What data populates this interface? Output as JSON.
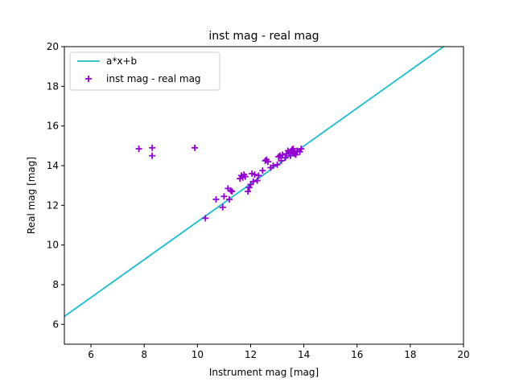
{
  "chart_data": {
    "type": "scatter",
    "title": "inst mag - real mag",
    "xlabel": "Instrument mag [mag]",
    "ylabel": "Real mag [mag]",
    "xlim": [
      5,
      20
    ],
    "ylim": [
      5,
      20
    ],
    "xticks": [
      6,
      8,
      10,
      12,
      14,
      16,
      18,
      20
    ],
    "yticks": [
      6,
      8,
      10,
      12,
      14,
      16,
      18,
      20
    ],
    "grid": false,
    "legend_position": "top-left",
    "series": [
      {
        "name": "a*x+b",
        "kind": "line",
        "color": "#17becf",
        "x": [
          5.0,
          19.25
        ],
        "y": [
          6.4,
          20.0
        ]
      },
      {
        "name": "inst mag - real mag",
        "kind": "scatter",
        "marker": "plus",
        "color": "#9400d3",
        "x": [
          7.8,
          8.3,
          8.3,
          9.9,
          10.3,
          10.7,
          10.95,
          11.0,
          11.15,
          11.2,
          11.3,
          11.25,
          11.6,
          11.65,
          11.7,
          11.75,
          11.8,
          11.9,
          11.95,
          12.0,
          12.05,
          12.1,
          12.15,
          12.25,
          12.3,
          12.45,
          12.55,
          12.6,
          12.65,
          12.75,
          12.85,
          13.0,
          13.05,
          13.1,
          13.15,
          13.2,
          13.3,
          13.35,
          13.4,
          13.45,
          13.5,
          13.55,
          13.6,
          13.6,
          13.65,
          13.7,
          13.75,
          13.85,
          13.9
        ],
        "y": [
          14.85,
          14.9,
          14.5,
          14.9,
          11.35,
          12.3,
          11.9,
          12.45,
          12.85,
          12.3,
          12.7,
          12.75,
          13.35,
          13.5,
          13.4,
          13.55,
          13.45,
          12.7,
          12.9,
          13.05,
          13.6,
          13.2,
          13.55,
          13.25,
          13.5,
          13.75,
          14.25,
          14.3,
          14.2,
          13.9,
          14.0,
          14.05,
          14.45,
          14.5,
          14.25,
          14.55,
          14.4,
          14.6,
          14.75,
          14.65,
          14.5,
          14.8,
          14.7,
          14.85,
          14.6,
          14.55,
          14.75,
          14.7,
          14.85
        ]
      }
    ]
  }
}
